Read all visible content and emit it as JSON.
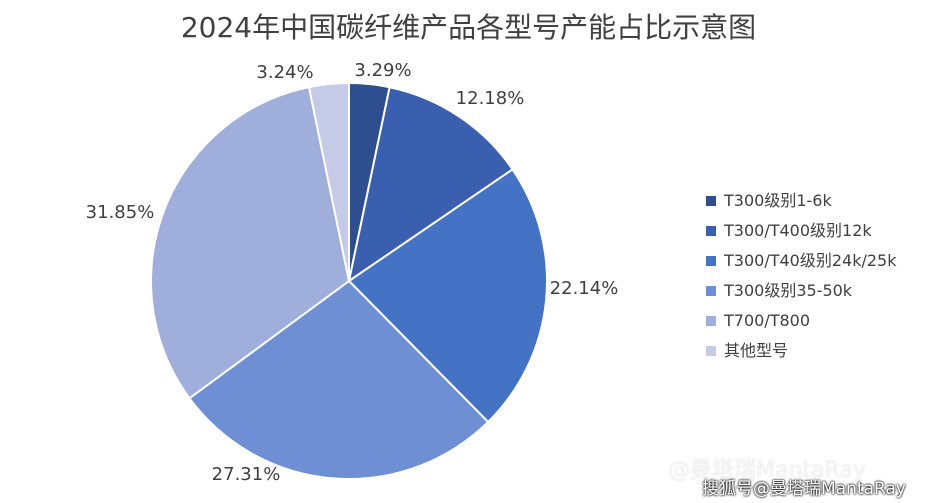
{
  "chart_data": {
    "type": "pie",
    "title": "2024年中国碳纤维产品各型号产能占比示意图",
    "categories": [
      "T300级别1-6k",
      "T300/T400级别12k",
      "T300/T40级别24k/25k",
      "T300级别35-50k",
      "T700/T800",
      "其他型号"
    ],
    "values": [
      3.29,
      12.18,
      22.14,
      27.31,
      31.85,
      3.24
    ],
    "data_labels": [
      "3.29%",
      "12.18%",
      "22.14%",
      "27.31%",
      "31.85%",
      "3.24%"
    ],
    "colors": [
      "#2E4E8F",
      "#3A5FAE",
      "#4472C4",
      "#6F8FD4",
      "#A0AEDC",
      "#C5CAE7"
    ],
    "legend_position": "right"
  },
  "watermark": {
    "faint": "@曼塔瑞MantaRay",
    "main": "搜狐号@曼塔瑞MantaRay"
  }
}
